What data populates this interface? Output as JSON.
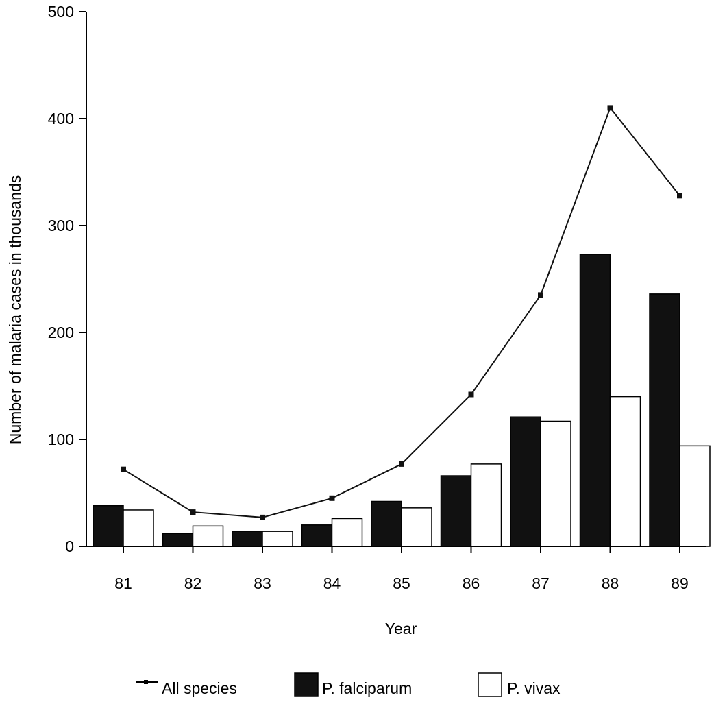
{
  "chart_data": {
    "type": "bar",
    "title": "",
    "xlabel": "Year",
    "ylabel": "Number of malaria cases in thousands",
    "categories": [
      "81",
      "82",
      "83",
      "84",
      "85",
      "86",
      "87",
      "88",
      "89"
    ],
    "ylim": [
      0,
      500
    ],
    "yticks": [
      "0",
      "100",
      "200",
      "300",
      "400",
      "500"
    ],
    "grid": false,
    "legend_position": "bottom",
    "series": [
      {
        "name": "P. falciparum",
        "type": "bar",
        "color": "#111111",
        "values": [
          38,
          12,
          14,
          20,
          42,
          66,
          121,
          273,
          236
        ]
      },
      {
        "name": "P. vivax",
        "type": "bar",
        "color": "#ffffff",
        "values": [
          34,
          19,
          14,
          26,
          36,
          77,
          117,
          140,
          94
        ]
      },
      {
        "name": "All species",
        "type": "line",
        "color": "#111111",
        "values": [
          72,
          32,
          27,
          45,
          77,
          142,
          235,
          410,
          328
        ]
      }
    ]
  }
}
